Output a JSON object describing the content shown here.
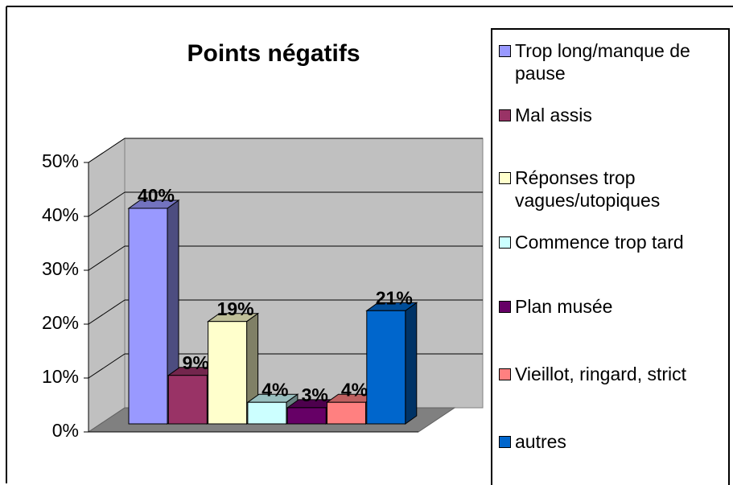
{
  "chart_data": {
    "type": "bar3d",
    "title": "Points négatifs",
    "categories": [
      "Trop long/manque de pause",
      "Mal assis",
      "Réponses trop vagues/utopiques",
      "Commence trop tard",
      "Plan musée",
      "Vieillot, ringard, strict",
      "autres"
    ],
    "values": [
      40,
      9,
      19,
      4,
      3,
      4,
      21
    ],
    "value_labels": [
      "40%",
      "9%",
      "19%",
      "4%",
      "3%",
      "4%",
      "21%"
    ],
    "colors": [
      "#9999ff",
      "#993366",
      "#ffffcc",
      "#ccffff",
      "#660066",
      "#ff8080",
      "#0066cc"
    ],
    "ylim": [
      0,
      50
    ],
    "yticks": [
      {
        "value": 0,
        "label": "0%"
      },
      {
        "value": 10,
        "label": "10%"
      },
      {
        "value": 20,
        "label": "20%"
      },
      {
        "value": 30,
        "label": "30%"
      },
      {
        "value": 40,
        "label": "40%"
      },
      {
        "value": 50,
        "label": "50%"
      }
    ],
    "grid": true,
    "legend": "right"
  }
}
